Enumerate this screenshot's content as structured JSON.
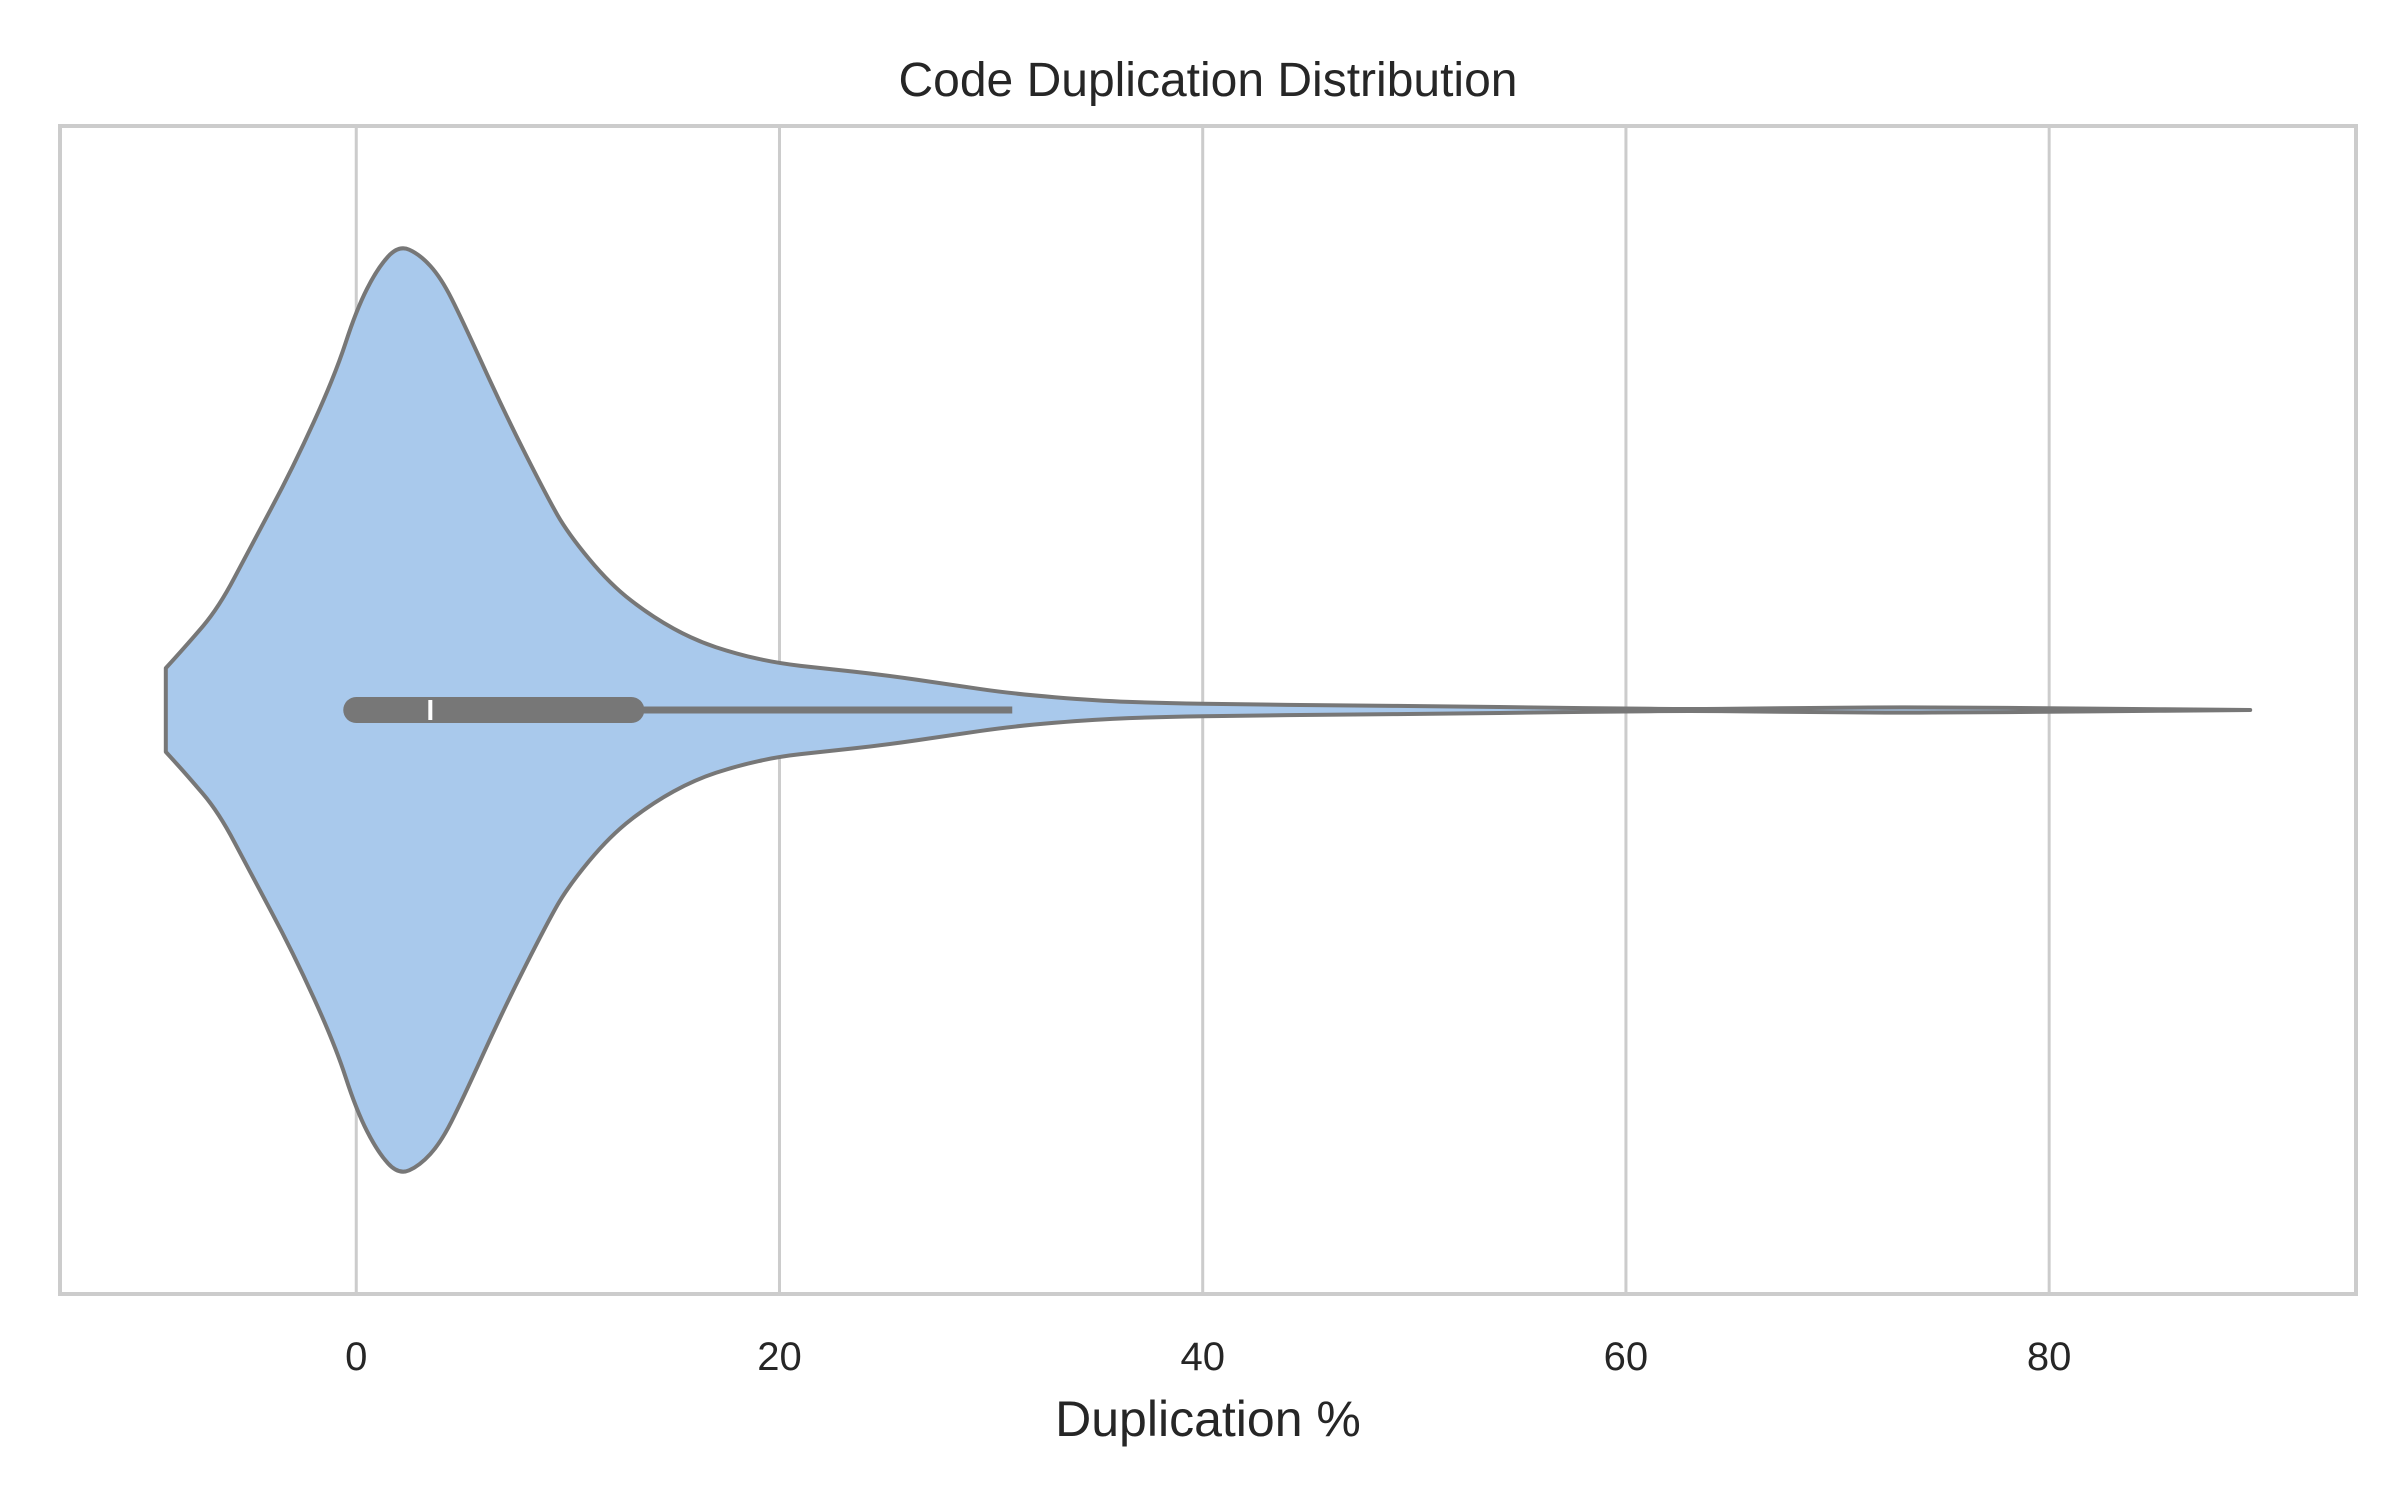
{
  "chart_data": {
    "type": "violin",
    "title": "Code Duplication Distribution",
    "xlabel": "Duplication %",
    "ylabel": "",
    "xlim": [
      -14,
      94.5
    ],
    "xticks": [
      0,
      20,
      40,
      60,
      80
    ],
    "xtick_labels": [
      "0",
      "20",
      "40",
      "60",
      "80"
    ],
    "grid": "vertical",
    "orientation": "horizontal",
    "colors": {
      "fill": "#a9c9ec",
      "edge": "#777777",
      "grid": "#cccccc",
      "median": "#ffffff"
    },
    "box": {
      "whisker_low": 0,
      "q1": 0,
      "median": 3.5,
      "q3": 13,
      "whisker_high": 31
    },
    "density": {
      "x": [
        -9,
        -8,
        -6.5,
        -5,
        -3,
        -1,
        0,
        1,
        2,
        3,
        4,
        5,
        7,
        9,
        10,
        12,
        14,
        16,
        18,
        20,
        22,
        25,
        28,
        31,
        35,
        38,
        42,
        46,
        52,
        56,
        60,
        63,
        66,
        70,
        73,
        76,
        80,
        84,
        87,
        89.5
      ],
      "half_width": [
        0.09,
        0.14,
        0.22,
        0.35,
        0.52,
        0.72,
        0.86,
        0.95,
        1.0,
        0.98,
        0.93,
        0.84,
        0.64,
        0.46,
        0.38,
        0.27,
        0.2,
        0.15,
        0.12,
        0.1,
        0.09,
        0.075,
        0.055,
        0.035,
        0.02,
        0.015,
        0.012,
        0.01,
        0.008,
        0.005,
        0.003,
        0.002,
        0.003,
        0.005,
        0.006,
        0.005,
        0.004,
        0.002,
        0.001,
        0.0
      ]
    }
  }
}
